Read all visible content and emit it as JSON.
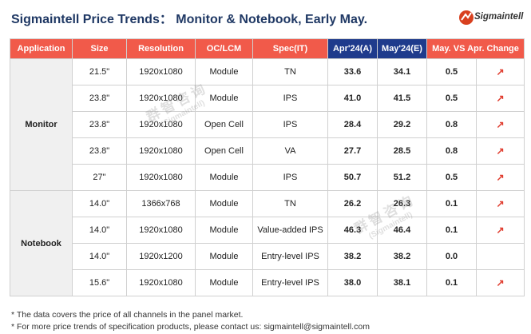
{
  "title": "Sigmaintell Price Trends： Monitor & Notebook, Early May.",
  "logo": {
    "text": "Sigmaintell",
    "accent": "#d8401f"
  },
  "watermark": {
    "cn": "群智咨询",
    "en": "(Sigmaintell)"
  },
  "table": {
    "headers": [
      "Application",
      "Size",
      "Resolution",
      "OC/LCM",
      "Spec(IT)",
      "Apr'24(A)",
      "May'24(E)",
      "May. VS Apr. Change",
      ""
    ],
    "groups": [
      {
        "application": "Monitor",
        "rows": [
          {
            "size": "21.5\"",
            "resolution": "1920x1080",
            "oc_lcm": "Module",
            "spec": "TN",
            "apr": "33.6",
            "may": "34.1",
            "change": "0.5",
            "trend": "↗"
          },
          {
            "size": "23.8\"",
            "resolution": "1920x1080",
            "oc_lcm": "Module",
            "spec": "IPS",
            "apr": "41.0",
            "may": "41.5",
            "change": "0.5",
            "trend": "↗"
          },
          {
            "size": "23.8\"",
            "resolution": "1920x1080",
            "oc_lcm": "Open Cell",
            "spec": "IPS",
            "apr": "28.4",
            "may": "29.2",
            "change": "0.8",
            "trend": "↗"
          },
          {
            "size": "23.8\"",
            "resolution": "1920x1080",
            "oc_lcm": "Open Cell",
            "spec": "VA",
            "apr": "27.7",
            "may": "28.5",
            "change": "0.8",
            "trend": "↗"
          },
          {
            "size": "27\"",
            "resolution": "1920x1080",
            "oc_lcm": "Module",
            "spec": "IPS",
            "apr": "50.7",
            "may": "51.2",
            "change": "0.5",
            "trend": "↗"
          }
        ]
      },
      {
        "application": "Notebook",
        "rows": [
          {
            "size": "14.0\"",
            "resolution": "1366x768",
            "oc_lcm": "Module",
            "spec": "TN",
            "apr": "26.2",
            "may": "26.3",
            "change": "0.1",
            "trend": "↗"
          },
          {
            "size": "14.0\"",
            "resolution": "1920x1080",
            "oc_lcm": "Module",
            "spec": "Value-added IPS",
            "apr": "46.3",
            "may": "46.4",
            "change": "0.1",
            "trend": "↗"
          },
          {
            "size": "14.0\"",
            "resolution": "1920x1200",
            "oc_lcm": "Module",
            "spec": "Entry-level IPS",
            "apr": "38.2",
            "may": "38.2",
            "change": "0.0",
            "trend": ""
          },
          {
            "size": "15.6\"",
            "resolution": "1920x1080",
            "oc_lcm": "Module",
            "spec": "Entry-level IPS",
            "apr": "38.0",
            "may": "38.1",
            "change": "0.1",
            "trend": "↗"
          }
        ]
      }
    ]
  },
  "footnotes": [
    "* The data covers the price of all channels in the panel market.",
    "* For more price trends of specification products, please contact us: sigmaintell@sigmaintell.com"
  ]
}
